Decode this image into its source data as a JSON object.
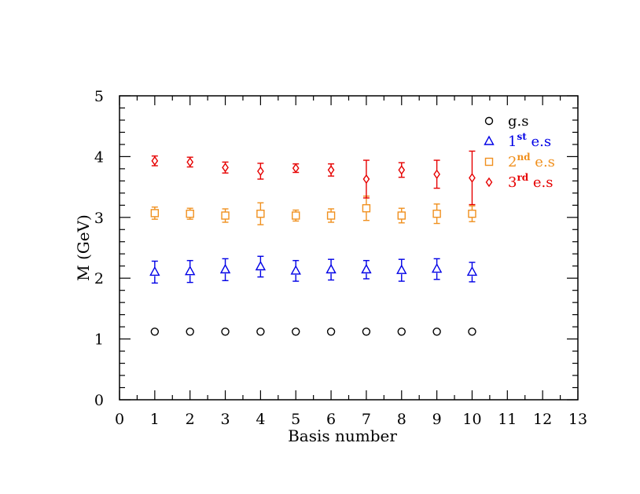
{
  "chart_data": {
    "type": "scatter",
    "xlabel": "Basis number",
    "ylabel": "M (GeV)",
    "xlim": [
      0,
      13
    ],
    "ylim": [
      0,
      5
    ],
    "x_ticks": [
      0,
      1,
      2,
      3,
      4,
      5,
      6,
      7,
      8,
      9,
      10,
      11,
      12,
      13
    ],
    "y_ticks": [
      0,
      1,
      2,
      3,
      4,
      5
    ],
    "grid": false,
    "legend_position": "top-right",
    "series": [
      {
        "name": "g.s",
        "legend_main": "g.s",
        "legend_sup": "",
        "legend_suffix": "",
        "marker": "circle",
        "color": "#000000",
        "x": [
          1,
          2,
          3,
          4,
          5,
          6,
          7,
          8,
          9,
          10
        ],
        "y": [
          1.12,
          1.12,
          1.12,
          1.12,
          1.12,
          1.12,
          1.12,
          1.12,
          1.12,
          1.12
        ],
        "err": [
          0,
          0,
          0,
          0,
          0,
          0,
          0,
          0,
          0,
          0
        ]
      },
      {
        "name": "1st e.s",
        "legend_main": "1",
        "legend_sup": "st",
        "legend_suffix": " e.s",
        "marker": "triangle",
        "color": "#0000e6",
        "x": [
          1,
          2,
          3,
          4,
          5,
          6,
          7,
          8,
          9,
          10
        ],
        "y": [
          2.1,
          2.11,
          2.14,
          2.19,
          2.12,
          2.14,
          2.14,
          2.13,
          2.15,
          2.1
        ],
        "err": [
          0.18,
          0.18,
          0.18,
          0.17,
          0.17,
          0.17,
          0.15,
          0.18,
          0.17,
          0.16
        ]
      },
      {
        "name": "2nd e.s",
        "legend_main": "2",
        "legend_sup": "nd",
        "legend_suffix": " e.s",
        "marker": "square",
        "color": "#f0901e",
        "x": [
          1,
          2,
          3,
          4,
          5,
          6,
          7,
          8,
          9,
          10
        ],
        "y": [
          3.07,
          3.06,
          3.03,
          3.06,
          3.03,
          3.03,
          3.15,
          3.03,
          3.06,
          3.06
        ],
        "err": [
          0.1,
          0.09,
          0.11,
          0.18,
          0.09,
          0.11,
          0.2,
          0.12,
          0.16,
          0.13
        ]
      },
      {
        "name": "3rd e.s",
        "legend_main": "3",
        "legend_sup": "rd",
        "legend_suffix": " e.s",
        "marker": "diamond",
        "color": "#e60000",
        "x": [
          1,
          2,
          3,
          4,
          5,
          6,
          7,
          8,
          9,
          10
        ],
        "y": [
          3.93,
          3.91,
          3.82,
          3.76,
          3.81,
          3.78,
          3.63,
          3.78,
          3.71,
          3.65
        ],
        "err": [
          0.08,
          0.08,
          0.09,
          0.13,
          0.07,
          0.1,
          0.31,
          0.12,
          0.23,
          0.44
        ]
      }
    ]
  }
}
